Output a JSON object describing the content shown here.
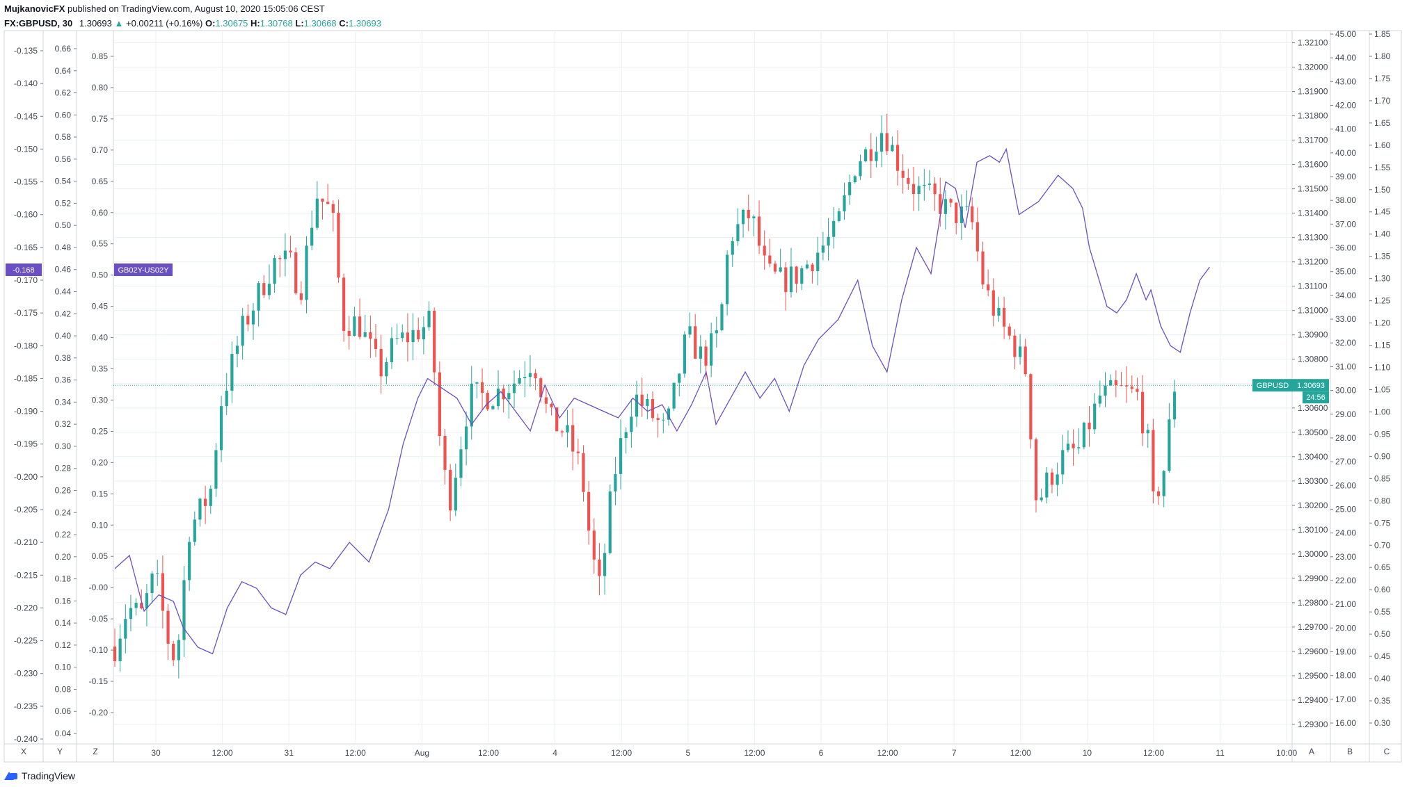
{
  "header": {
    "publisher": "MujkanovicFX",
    "published_text": "published on TradingView.com, August 10, 2020 15:05:06 CEST",
    "symbol": "FX:GBPUSD, 30",
    "last": "1.30693",
    "change": "+0.00211 (+0.16%)",
    "o_label": "O:",
    "o": "1.30675",
    "h_label": "H:",
    "h": "1.30768",
    "l_label": "L:",
    "l": "1.30668",
    "c_label": "C:",
    "c": "1.30693"
  },
  "footer": {
    "brand": "TradingView"
  },
  "colors": {
    "up": "#26a69a",
    "down": "#ef5350",
    "spread_line": "#6a4fc4",
    "grid": "#eceff2",
    "axis_text": "#434651"
  },
  "chart_data": {
    "type": "candlestick",
    "series": [
      {
        "name": "GBPUSD",
        "kind": "candles",
        "scale": "price",
        "last_value": "1.30693",
        "countdown": "24:56"
      },
      {
        "name": "GB02Y-US02Y",
        "kind": "line",
        "scale": "spread",
        "last_value": "-0.168"
      }
    ],
    "x_ticks": [
      "30",
      "12:00",
      "31",
      "12:00",
      "Aug",
      "12:00",
      "4",
      "12:00",
      "5",
      "12:00",
      "6",
      "12:00",
      "7",
      "12:00",
      "10",
      "12:00",
      "11",
      "10:00"
    ],
    "price_axis": {
      "ticks": [
        "1.32100",
        "1.32000",
        "1.31900",
        "1.31800",
        "1.31700",
        "1.31600",
        "1.31500",
        "1.31400",
        "1.31300",
        "1.31200",
        "1.31100",
        "1.31000",
        "1.30900",
        "1.30800",
        "1.30700",
        "1.30600",
        "1.30500",
        "1.30400",
        "1.30300",
        "1.30200",
        "1.30100",
        "1.30000",
        "1.29900",
        "1.29800",
        "1.29700",
        "1.29600",
        "1.29500",
        "1.29400",
        "1.29300"
      ],
      "label": "A"
    },
    "axis_b": {
      "ticks": [
        "45.00",
        "44.00",
        "43.00",
        "42.00",
        "41.00",
        "40.00",
        "39.00",
        "38.00",
        "37.00",
        "36.00",
        "35.00",
        "34.00",
        "33.00",
        "32.00",
        "31.00",
        "30.00",
        "29.00",
        "28.00",
        "27.00",
        "26.00",
        "25.00",
        "24.00",
        "23.00",
        "22.00",
        "21.00",
        "20.00",
        "19.00",
        "18.00",
        "17.00",
        "16.00"
      ],
      "label": "B"
    },
    "axis_c": {
      "ticks": [
        "1.85",
        "1.80",
        "1.75",
        "1.70",
        "1.65",
        "1.60",
        "1.55",
        "1.50",
        "1.45",
        "1.40",
        "1.35",
        "1.30",
        "1.25",
        "1.20",
        "1.15",
        "1.10",
        "1.05",
        "1.00",
        "0.95",
        "0.90",
        "0.85",
        "0.80",
        "0.75",
        "0.70",
        "0.65",
        "0.60",
        "0.55",
        "0.50",
        "0.45",
        "0.40",
        "0.35",
        "0.30"
      ],
      "label": "C"
    },
    "axis_x_left": {
      "ticks": [
        "-0.135",
        "-0.140",
        "-0.145",
        "-0.150",
        "-0.155",
        "-0.160",
        "-0.165",
        "-0.170",
        "-0.175",
        "-0.180",
        "-0.185",
        "-0.190",
        "-0.195",
        "-0.200",
        "-0.205",
        "-0.210",
        "-0.215",
        "-0.220",
        "-0.225",
        "-0.230",
        "-0.235",
        "-0.240"
      ],
      "label": "X"
    },
    "axis_y_left": {
      "ticks": [
        "0.66",
        "0.64",
        "0.62",
        "0.60",
        "0.58",
        "0.56",
        "0.54",
        "0.52",
        "0.50",
        "0.48",
        "0.46",
        "0.44",
        "0.42",
        "0.40",
        "0.38",
        "0.36",
        "0.34",
        "0.32",
        "0.30",
        "0.28",
        "0.26",
        "0.24",
        "0.22",
        "0.20",
        "0.18",
        "0.16",
        "0.14",
        "0.12",
        "0.10",
        "0.08",
        "0.06",
        "0.04"
      ],
      "label": "Y"
    },
    "axis_z_left": {
      "ticks": [
        "0.85",
        "0.80",
        "0.75",
        "0.70",
        "0.65",
        "0.60",
        "0.55",
        "0.50",
        "0.45",
        "0.40",
        "0.35",
        "0.30",
        "0.25",
        "0.20",
        "0.15",
        "0.10",
        "0.05",
        "-0.00",
        "-0.05",
        "-0.10",
        "-0.15",
        "-0.20"
      ],
      "label": "Z"
    },
    "price_range": [
      1.2922,
      1.3215
    ],
    "spread_range": [
      -0.2405,
      -0.1315
    ],
    "candle_anchors": [
      [
        0,
        1.2962
      ],
      [
        12,
        1.2978
      ],
      [
        25,
        1.2975
      ],
      [
        38,
        1.2992
      ],
      [
        50,
        1.2965
      ],
      [
        58,
        1.2955
      ],
      [
        70,
        1.301
      ],
      [
        90,
        1.3025
      ],
      [
        100,
        1.3062
      ],
      [
        120,
        1.3092
      ],
      [
        137,
        1.3108
      ],
      [
        150,
        1.312
      ],
      [
        165,
        1.312
      ],
      [
        175,
        1.3108
      ],
      [
        190,
        1.3148
      ],
      [
        205,
        1.314
      ],
      [
        215,
        1.3095
      ],
      [
        230,
        1.3095
      ],
      [
        250,
        1.3075
      ],
      [
        265,
        1.3087
      ],
      [
        280,
        1.309
      ],
      [
        298,
        1.3095
      ],
      [
        306,
        1.305
      ],
      [
        315,
        1.302
      ],
      [
        335,
        1.3065
      ],
      [
        355,
        1.3065
      ],
      [
        375,
        1.307
      ],
      [
        395,
        1.308
      ],
      [
        410,
        1.3055
      ],
      [
        425,
        1.305
      ],
      [
        440,
        1.3035
      ],
      [
        450,
        1.3
      ],
      [
        458,
        1.2985
      ],
      [
        470,
        1.303
      ],
      [
        480,
        1.305
      ],
      [
        490,
        1.3065
      ],
      [
        505,
        1.3058
      ],
      [
        520,
        1.305
      ],
      [
        540,
        1.309
      ],
      [
        555,
        1.308
      ],
      [
        570,
        1.309
      ],
      [
        580,
        1.313
      ],
      [
        600,
        1.314
      ],
      [
        615,
        1.3115
      ],
      [
        630,
        1.3112
      ],
      [
        645,
        1.3115
      ],
      [
        665,
        1.3125
      ],
      [
        680,
        1.3132
      ],
      [
        700,
        1.3162
      ],
      [
        710,
        1.3165
      ],
      [
        725,
        1.3175
      ],
      [
        740,
        1.316
      ],
      [
        755,
        1.315
      ],
      [
        775,
        1.3145
      ],
      [
        790,
        1.314
      ],
      [
        808,
        1.3138
      ],
      [
        820,
        1.311
      ],
      [
        835,
        1.3095
      ],
      [
        850,
        1.3085
      ],
      [
        860,
        1.3075
      ],
      [
        870,
        1.302
      ],
      [
        880,
        1.303
      ],
      [
        895,
        1.304
      ],
      [
        910,
        1.3043
      ],
      [
        930,
        1.3065
      ],
      [
        950,
        1.3067
      ],
      [
        965,
        1.3065
      ],
      [
        975,
        1.3045
      ],
      [
        980,
        1.302
      ],
      [
        990,
        1.3035
      ],
      [
        1000,
        1.3069
      ]
    ],
    "spread_anchors": [
      [
        0,
        -0.214
      ],
      [
        15,
        -0.212
      ],
      [
        30,
        -0.2205
      ],
      [
        45,
        -0.218
      ],
      [
        60,
        -0.219
      ],
      [
        70,
        -0.223
      ],
      [
        85,
        -0.226
      ],
      [
        100,
        -0.227
      ],
      [
        115,
        -0.22
      ],
      [
        130,
        -0.216
      ],
      [
        145,
        -0.217
      ],
      [
        160,
        -0.22
      ],
      [
        175,
        -0.221
      ],
      [
        190,
        -0.215
      ],
      [
        205,
        -0.213
      ],
      [
        220,
        -0.214
      ],
      [
        240,
        -0.21
      ],
      [
        260,
        -0.213
      ],
      [
        280,
        -0.205
      ],
      [
        295,
        -0.195
      ],
      [
        310,
        -0.188
      ],
      [
        320,
        -0.185
      ],
      [
        330,
        -0.186
      ],
      [
        340,
        -0.187
      ],
      [
        350,
        -0.188
      ],
      [
        365,
        -0.192
      ],
      [
        380,
        -0.189
      ],
      [
        395,
        -0.187
      ],
      [
        410,
        -0.19
      ],
      [
        425,
        -0.193
      ],
      [
        440,
        -0.186
      ],
      [
        455,
        -0.191
      ],
      [
        470,
        -0.188
      ],
      [
        485,
        -0.189
      ],
      [
        500,
        -0.19
      ],
      [
        515,
        -0.191
      ],
      [
        530,
        -0.188
      ],
      [
        545,
        -0.19
      ],
      [
        560,
        -0.189
      ],
      [
        575,
        -0.193
      ],
      [
        590,
        -0.189
      ],
      [
        605,
        -0.184
      ],
      [
        615,
        -0.192
      ],
      [
        630,
        -0.188
      ],
      [
        645,
        -0.184
      ],
      [
        660,
        -0.188
      ],
      [
        675,
        -0.185
      ],
      [
        690,
        -0.19
      ],
      [
        705,
        -0.183
      ],
      [
        720,
        -0.179
      ],
      [
        740,
        -0.176
      ],
      [
        760,
        -0.17
      ],
      [
        775,
        -0.18
      ],
      [
        790,
        -0.184
      ],
      [
        805,
        -0.173
      ],
      [
        820,
        -0.165
      ],
      [
        835,
        -0.169
      ],
      [
        850,
        -0.155
      ],
      [
        860,
        -0.156
      ],
      [
        870,
        -0.162
      ],
      [
        882,
        -0.152
      ],
      [
        895,
        -0.151
      ],
      [
        905,
        -0.152
      ],
      [
        912,
        -0.15
      ],
      [
        925,
        -0.16
      ],
      [
        945,
        -0.158
      ],
      [
        965,
        -0.154
      ],
      [
        980,
        -0.156
      ],
      [
        990,
        -0.159
      ],
      [
        997,
        -0.165
      ],
      [
        1005,
        -0.169
      ],
      [
        1015,
        -0.174
      ],
      [
        1025,
        -0.175
      ],
      [
        1035,
        -0.173
      ],
      [
        1045,
        -0.169
      ],
      [
        1055,
        -0.173
      ],
      [
        1060,
        -0.1715
      ],
      [
        1070,
        -0.177
      ],
      [
        1080,
        -0.18
      ],
      [
        1090,
        -0.181
      ],
      [
        1100,
        -0.175
      ],
      [
        1110,
        -0.17
      ],
      [
        1120,
        -0.168
      ]
    ],
    "spread_x_end": 0.93
  }
}
